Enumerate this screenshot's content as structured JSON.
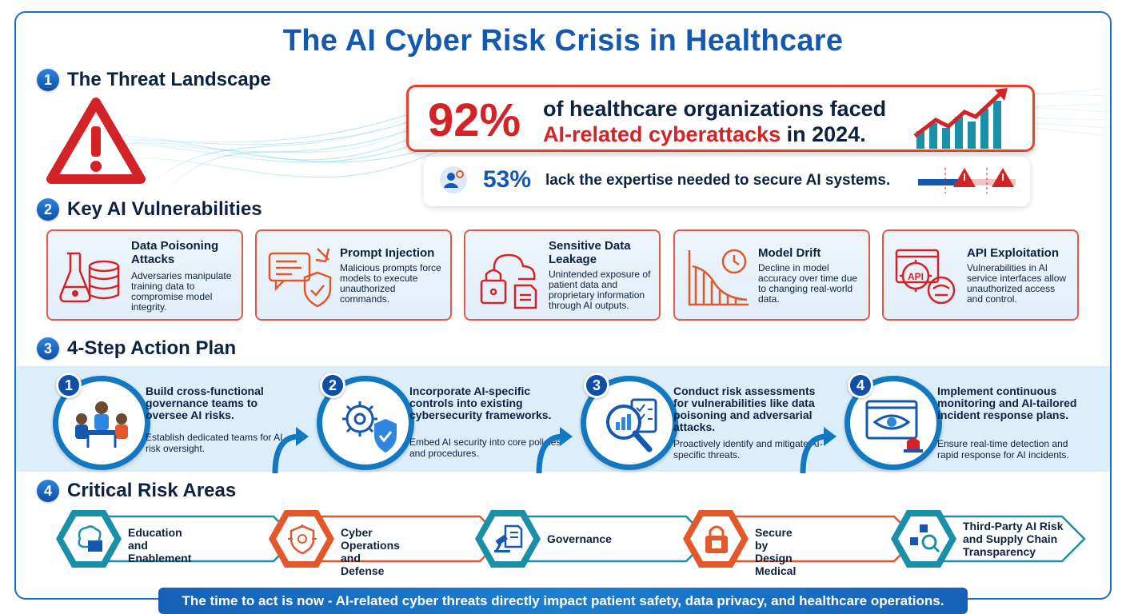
{
  "title": "The AI Cyber Risk Crisis in Healthcare",
  "sections": {
    "s1": {
      "num": "1",
      "title": "The Threat Landscape"
    },
    "s2": {
      "num": "2",
      "title": "Key AI Vulnerabilities"
    },
    "s3": {
      "num": "3",
      "title": "4-Step Action Plan"
    },
    "s4": {
      "num": "4",
      "title": "Critical Risk Areas"
    }
  },
  "threat": {
    "main_stat": "92%",
    "main_line1": "of healthcare organizations faced",
    "main_line2_highlight": "AI-related cyberattacks",
    "main_line2_rest": " in 2024.",
    "sub_stat": "53%",
    "sub_text": "lack the expertise needed to secure AI systems."
  },
  "vulnerabilities": [
    {
      "title": "Data Poisoning Attacks",
      "desc": "Adversaries manipulate training data to compromise model integrity.",
      "icon": "flask-database-icon"
    },
    {
      "title": "Prompt Injection",
      "desc": "Malicious prompts force models to execute unauthorized commands.",
      "icon": "prompt-shield-icon"
    },
    {
      "title": "Sensitive Data Leakage",
      "desc": "Unintended exposure of patient data and proprietary information through AI outputs.",
      "icon": "cloud-lock-icon"
    },
    {
      "title": "Model Drift",
      "desc": "Decline in model accuracy over time due to changing real-world data.",
      "icon": "declining-chart-icon"
    },
    {
      "title": "API Exploitation",
      "desc": "Vulnerabilities in AI service interfaces allow unauthorized access and control.",
      "icon": "api-hacker-icon"
    }
  ],
  "steps": [
    {
      "num": "1",
      "title": "Build cross-functional governance teams to oversee AI risks.",
      "sub": "Establish dedicated teams for AI risk oversight.",
      "icon": "team-meeting-icon"
    },
    {
      "num": "2",
      "title": "Incorporate AI-specific controls into existing cybersecurity frameworks.",
      "sub": "Embed AI security into core policies and procedures.",
      "icon": "gear-shield-icon"
    },
    {
      "num": "3",
      "title": "Conduct risk assessments for vulnerabilities like data poisoning and adversarial attacks.",
      "sub": "Proactively identify and mitigate AI-specific threats.",
      "icon": "magnifier-report-icon"
    },
    {
      "num": "4",
      "title": "Implement continuous monitoring and AI-tailored incident response plans.",
      "sub": "Ensure real-time detection and rapid response for AI incidents.",
      "icon": "monitor-eye-icon"
    }
  ],
  "risks": [
    {
      "label": "Education and Enablement",
      "icon": "brain-book-icon",
      "color": "#1a8fa8"
    },
    {
      "label": "Cyber Operations and Defense",
      "icon": "shield-circuit-icon",
      "color": "#e2582a"
    },
    {
      "label": "Governance",
      "icon": "gavel-document-icon",
      "color": "#1a8fa8"
    },
    {
      "label": "Secure by Design Medical",
      "icon": "padlock-chip-icon",
      "color": "#e2582a"
    },
    {
      "label": "Third-Party AI Risk and Supply Chain Transparency",
      "icon": "supply-chain-icon",
      "color": "#1a8fa8"
    }
  ],
  "footer": "The time to act is now - AI-related cyber threats directly impact patient safety, data privacy, and healthcare operations.",
  "colors": {
    "primary": "#1458b0",
    "danger": "#d42327",
    "accent_orange": "#e2582a",
    "teal": "#1a8fa8"
  }
}
